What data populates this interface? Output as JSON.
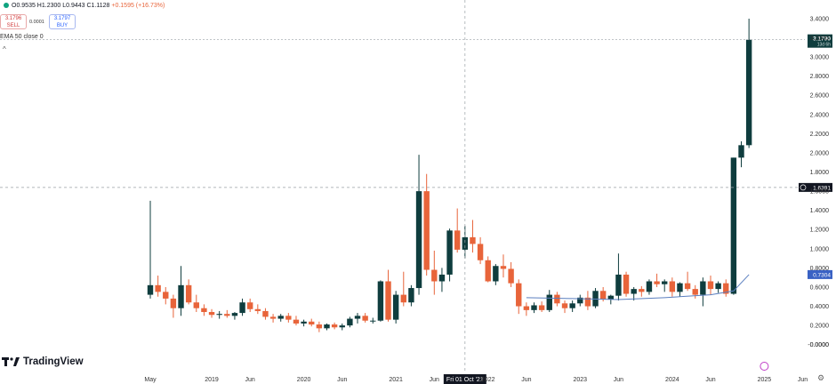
{
  "header": {
    "ohlc": "O0.9535 H1.2300 L0.9443 C1.1128 ",
    "change": "+0.1595 (+16.73%)",
    "sell_price": "3.1796",
    "sell_label": "SELL",
    "spread": "0.0001",
    "buy_price": "3.1797",
    "buy_label": "BUY",
    "indicator": "EMA 50 close 0",
    "collapse_glyph": "^"
  },
  "branding": {
    "logo_text": "TradingView"
  },
  "colors": {
    "up": "#0f3d3e",
    "down": "#e8643a",
    "ema": "#5b7fbf",
    "crosshair": "#9aa0a6"
  },
  "chart_data": {
    "type": "candlestick",
    "interval": "monthly",
    "x_tick_labels": [
      "May",
      "2019",
      "Jun",
      "2020",
      "Jun",
      "2021",
      "Jun",
      "2022",
      "Jun",
      "2023",
      "Jun",
      "2024",
      "Jun",
      "2025",
      "Jun"
    ],
    "y_tick_labels": [
      "3.4000",
      "3.2000",
      "3.0000",
      "2.8000",
      "2.6000",
      "2.4000",
      "2.2000",
      "2.0000",
      "1.8000",
      "1.6000",
      "1.4000",
      "1.2000",
      "1.0000",
      "0.8000",
      "0.6000",
      "0.4000",
      "0.2000",
      "0.0000",
      "-0.0000"
    ],
    "ylim": [
      -0.04,
      3.52
    ],
    "price_label": {
      "value": "3.1790",
      "sub": "13d 6h"
    },
    "crosshair_price_label": "1.6391",
    "ema_label": "0.7304",
    "crosshair_x_label": "Fri 01 Oct '21",
    "candles": [
      {
        "date": "2018-05",
        "o": 0.52,
        "h": 1.5,
        "l": 0.48,
        "c": 0.62
      },
      {
        "date": "2018-06",
        "o": 0.62,
        "h": 0.72,
        "l": 0.5,
        "c": 0.55
      },
      {
        "date": "2018-07",
        "o": 0.55,
        "h": 0.6,
        "l": 0.42,
        "c": 0.48
      },
      {
        "date": "2018-08",
        "o": 0.48,
        "h": 0.52,
        "l": 0.28,
        "c": 0.38
      },
      {
        "date": "2018-09",
        "o": 0.38,
        "h": 0.82,
        "l": 0.3,
        "c": 0.62
      },
      {
        "date": "2018-10",
        "o": 0.62,
        "h": 0.68,
        "l": 0.42,
        "c": 0.44
      },
      {
        "date": "2018-11",
        "o": 0.44,
        "h": 0.52,
        "l": 0.34,
        "c": 0.38
      },
      {
        "date": "2018-12",
        "o": 0.38,
        "h": 0.42,
        "l": 0.3,
        "c": 0.34
      },
      {
        "date": "2019-01",
        "o": 0.34,
        "h": 0.37,
        "l": 0.28,
        "c": 0.31
      },
      {
        "date": "2019-02",
        "o": 0.31,
        "h": 0.35,
        "l": 0.27,
        "c": 0.32
      },
      {
        "date": "2019-03",
        "o": 0.32,
        "h": 0.36,
        "l": 0.28,
        "c": 0.3
      },
      {
        "date": "2019-04",
        "o": 0.3,
        "h": 0.34,
        "l": 0.26,
        "c": 0.33
      },
      {
        "date": "2019-05",
        "o": 0.33,
        "h": 0.48,
        "l": 0.3,
        "c": 0.44
      },
      {
        "date": "2019-06",
        "o": 0.44,
        "h": 0.48,
        "l": 0.34,
        "c": 0.37
      },
      {
        "date": "2019-07",
        "o": 0.37,
        "h": 0.42,
        "l": 0.32,
        "c": 0.35
      },
      {
        "date": "2019-08",
        "o": 0.35,
        "h": 0.38,
        "l": 0.26,
        "c": 0.29
      },
      {
        "date": "2019-09",
        "o": 0.29,
        "h": 0.32,
        "l": 0.23,
        "c": 0.27
      },
      {
        "date": "2019-10",
        "o": 0.27,
        "h": 0.32,
        "l": 0.24,
        "c": 0.3
      },
      {
        "date": "2019-11",
        "o": 0.3,
        "h": 0.33,
        "l": 0.23,
        "c": 0.26
      },
      {
        "date": "2019-12",
        "o": 0.26,
        "h": 0.3,
        "l": 0.2,
        "c": 0.22
      },
      {
        "date": "2020-01",
        "o": 0.22,
        "h": 0.26,
        "l": 0.19,
        "c": 0.24
      },
      {
        "date": "2020-02",
        "o": 0.24,
        "h": 0.27,
        "l": 0.19,
        "c": 0.21
      },
      {
        "date": "2020-03",
        "o": 0.21,
        "h": 0.24,
        "l": 0.13,
        "c": 0.17
      },
      {
        "date": "2020-04",
        "o": 0.17,
        "h": 0.22,
        "l": 0.15,
        "c": 0.21
      },
      {
        "date": "2020-05",
        "o": 0.21,
        "h": 0.23,
        "l": 0.16,
        "c": 0.18
      },
      {
        "date": "2020-06",
        "o": 0.18,
        "h": 0.22,
        "l": 0.15,
        "c": 0.2
      },
      {
        "date": "2020-07",
        "o": 0.2,
        "h": 0.29,
        "l": 0.18,
        "c": 0.27
      },
      {
        "date": "2020-08",
        "o": 0.27,
        "h": 0.33,
        "l": 0.22,
        "c": 0.3
      },
      {
        "date": "2020-09",
        "o": 0.3,
        "h": 0.33,
        "l": 0.23,
        "c": 0.25
      },
      {
        "date": "2020-10",
        "o": 0.25,
        "h": 0.28,
        "l": 0.22,
        "c": 0.25
      },
      {
        "date": "2020-11",
        "o": 0.25,
        "h": 0.67,
        "l": 0.24,
        "c": 0.66
      },
      {
        "date": "2020-12",
        "o": 0.66,
        "h": 0.78,
        "l": 0.24,
        "c": 0.26
      },
      {
        "date": "2021-01",
        "o": 0.26,
        "h": 0.56,
        "l": 0.22,
        "c": 0.52
      },
      {
        "date": "2021-02",
        "o": 0.52,
        "h": 0.76,
        "l": 0.4,
        "c": 0.44
      },
      {
        "date": "2021-03",
        "o": 0.44,
        "h": 0.62,
        "l": 0.4,
        "c": 0.59
      },
      {
        "date": "2021-04",
        "o": 0.59,
        "h": 1.98,
        "l": 0.52,
        "c": 1.6
      },
      {
        "date": "2021-05",
        "o": 1.6,
        "h": 1.78,
        "l": 0.72,
        "c": 0.78
      },
      {
        "date": "2021-06",
        "o": 0.78,
        "h": 0.98,
        "l": 0.52,
        "c": 0.66
      },
      {
        "date": "2021-07",
        "o": 0.66,
        "h": 0.8,
        "l": 0.55,
        "c": 0.73
      },
      {
        "date": "2021-08",
        "o": 0.73,
        "h": 1.21,
        "l": 0.66,
        "c": 1.19
      },
      {
        "date": "2021-09",
        "o": 1.19,
        "h": 1.42,
        "l": 0.96,
        "c": 0.99
      },
      {
        "date": "2021-10",
        "o": 0.99,
        "h": 1.24,
        "l": 0.9,
        "c": 1.12
      },
      {
        "date": "2021-11",
        "o": 1.12,
        "h": 1.3,
        "l": 0.96,
        "c": 1.05
      },
      {
        "date": "2021-12",
        "o": 1.05,
        "h": 1.12,
        "l": 0.84,
        "c": 0.88
      },
      {
        "date": "2022-01",
        "o": 0.88,
        "h": 0.92,
        "l": 0.65,
        "c": 0.66
      },
      {
        "date": "2022-02",
        "o": 0.66,
        "h": 0.84,
        "l": 0.62,
        "c": 0.82
      },
      {
        "date": "2022-03",
        "o": 0.82,
        "h": 0.94,
        "l": 0.7,
        "c": 0.79
      },
      {
        "date": "2022-04",
        "o": 0.79,
        "h": 0.86,
        "l": 0.6,
        "c": 0.64
      },
      {
        "date": "2022-05",
        "o": 0.64,
        "h": 0.68,
        "l": 0.32,
        "c": 0.4
      },
      {
        "date": "2022-06",
        "o": 0.4,
        "h": 0.44,
        "l": 0.3,
        "c": 0.36
      },
      {
        "date": "2022-07",
        "o": 0.36,
        "h": 0.44,
        "l": 0.33,
        "c": 0.41
      },
      {
        "date": "2022-08",
        "o": 0.41,
        "h": 0.45,
        "l": 0.34,
        "c": 0.36
      },
      {
        "date": "2022-09",
        "o": 0.36,
        "h": 0.57,
        "l": 0.34,
        "c": 0.52
      },
      {
        "date": "2022-10",
        "o": 0.52,
        "h": 0.55,
        "l": 0.4,
        "c": 0.43
      },
      {
        "date": "2022-11",
        "o": 0.43,
        "h": 0.46,
        "l": 0.33,
        "c": 0.38
      },
      {
        "date": "2022-12",
        "o": 0.38,
        "h": 0.46,
        "l": 0.34,
        "c": 0.43
      },
      {
        "date": "2023-01",
        "o": 0.43,
        "h": 0.52,
        "l": 0.4,
        "c": 0.49
      },
      {
        "date": "2023-02",
        "o": 0.49,
        "h": 0.56,
        "l": 0.36,
        "c": 0.4
      },
      {
        "date": "2023-03",
        "o": 0.4,
        "h": 0.59,
        "l": 0.38,
        "c": 0.56
      },
      {
        "date": "2023-04",
        "o": 0.56,
        "h": 0.6,
        "l": 0.45,
        "c": 0.47
      },
      {
        "date": "2023-05",
        "o": 0.47,
        "h": 0.52,
        "l": 0.42,
        "c": 0.51
      },
      {
        "date": "2023-06",
        "o": 0.51,
        "h": 0.95,
        "l": 0.46,
        "c": 0.73
      },
      {
        "date": "2023-07",
        "o": 0.73,
        "h": 0.76,
        "l": 0.5,
        "c": 0.53
      },
      {
        "date": "2023-08",
        "o": 0.53,
        "h": 0.6,
        "l": 0.46,
        "c": 0.58
      },
      {
        "date": "2023-09",
        "o": 0.58,
        "h": 0.61,
        "l": 0.5,
        "c": 0.55
      },
      {
        "date": "2023-10",
        "o": 0.55,
        "h": 0.68,
        "l": 0.52,
        "c": 0.66
      },
      {
        "date": "2023-11",
        "o": 0.66,
        "h": 0.74,
        "l": 0.6,
        "c": 0.63
      },
      {
        "date": "2023-12",
        "o": 0.63,
        "h": 0.68,
        "l": 0.55,
        "c": 0.66
      },
      {
        "date": "2024-01",
        "o": 0.66,
        "h": 0.7,
        "l": 0.5,
        "c": 0.55
      },
      {
        "date": "2024-02",
        "o": 0.55,
        "h": 0.65,
        "l": 0.5,
        "c": 0.64
      },
      {
        "date": "2024-03",
        "o": 0.64,
        "h": 0.76,
        "l": 0.56,
        "c": 0.58
      },
      {
        "date": "2024-04",
        "o": 0.58,
        "h": 0.62,
        "l": 0.48,
        "c": 0.52
      },
      {
        "date": "2024-05",
        "o": 0.52,
        "h": 0.7,
        "l": 0.4,
        "c": 0.66
      },
      {
        "date": "2024-06",
        "o": 0.66,
        "h": 0.72,
        "l": 0.52,
        "c": 0.58
      },
      {
        "date": "2024-07",
        "o": 0.58,
        "h": 0.66,
        "l": 0.54,
        "c": 0.64
      },
      {
        "date": "2024-08",
        "o": 0.64,
        "h": 0.68,
        "l": 0.5,
        "c": 0.53
      },
      {
        "date": "2024-09",
        "o": 0.53,
        "h": 1.95,
        "l": 0.52,
        "c": 1.95
      },
      {
        "date": "2024-10",
        "o": 1.95,
        "h": 2.12,
        "l": 1.85,
        "c": 2.08
      },
      {
        "date": "2024-11",
        "o": 2.08,
        "h": 3.4,
        "l": 2.05,
        "c": 3.18
      }
    ],
    "ema50": [
      {
        "date": "2022-06",
        "v": 0.49
      },
      {
        "date": "2022-12",
        "v": 0.48
      },
      {
        "date": "2023-06",
        "v": 0.47
      },
      {
        "date": "2023-12",
        "v": 0.49
      },
      {
        "date": "2024-06",
        "v": 0.52
      },
      {
        "date": "2024-09",
        "v": 0.56
      },
      {
        "date": "2024-11",
        "v": 0.73
      }
    ]
  }
}
